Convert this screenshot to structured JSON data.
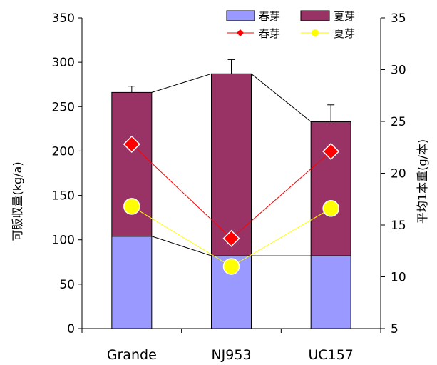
{
  "chart_data": {
    "type": "bar",
    "categories": [
      "Grande",
      "NJ953",
      "UC157"
    ],
    "ylabel_left": "可販収量(kg/a)",
    "ylabel_right": "平均1本重(g/本)",
    "ylim_left": [
      0,
      350
    ],
    "yticks_left": [
      0,
      50,
      100,
      150,
      200,
      250,
      300,
      350
    ],
    "ylim_right": [
      5,
      35
    ],
    "yticks_right": [
      5,
      10,
      15,
      20,
      25,
      30,
      35
    ],
    "grid": false,
    "legend_position": "top-right",
    "bar_series": [
      {
        "name": "春芽",
        "values": [
          104,
          82,
          82
        ],
        "color": "#9999ff"
      },
      {
        "name": "夏芽",
        "values": [
          162,
          205,
          151
        ],
        "color": "#993366"
      }
    ],
    "bar_totals": [
      266,
      287,
      233
    ],
    "error_bars": [
      7,
      16,
      19
    ],
    "line_series": [
      {
        "name": "春芽",
        "values": [
          22.8,
          13.7,
          22.1
        ],
        "color": "#ff0000",
        "marker": "diamond"
      },
      {
        "name": "夏芽",
        "values": [
          16.8,
          11.0,
          16.6
        ],
        "color": "#ffff00",
        "marker": "circle"
      }
    ]
  }
}
